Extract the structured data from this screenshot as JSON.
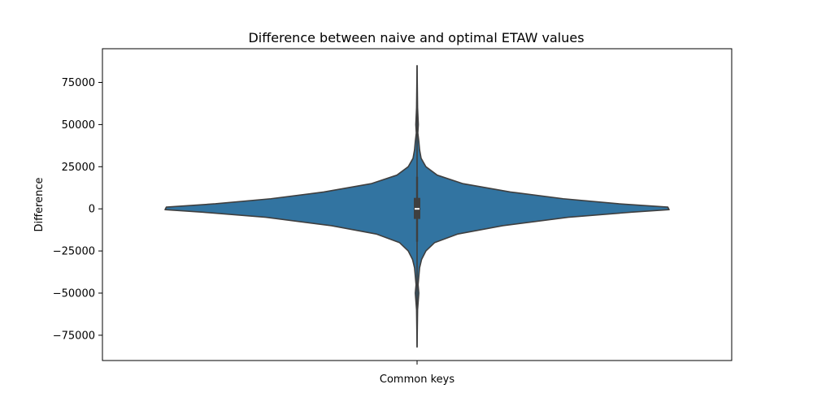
{
  "chart_data": {
    "type": "violin",
    "title": "Difference between naive and optimal ETAW values",
    "xlabel": "Common keys",
    "ylabel": "Difference",
    "categories": [
      ""
    ],
    "ylim": [
      -90000,
      95000
    ],
    "yticks": [
      -75000,
      -50000,
      -25000,
      0,
      25000,
      50000,
      75000
    ],
    "ytick_labels": [
      "−75000",
      "−50000",
      "−25000",
      "0",
      "25000",
      "50000",
      "75000"
    ],
    "grid": false,
    "violin": {
      "y_max": 85000,
      "y_min": -82000,
      "median": 0,
      "q1": -6000,
      "q3": 6500,
      "whisker_low": -19500,
      "whisker_high": 19000,
      "density_profile": [
        {
          "y": 85000,
          "w": 0.0
        },
        {
          "y": 60000,
          "w": 0.002
        },
        {
          "y": 50000,
          "w": 0.005
        },
        {
          "y": 45000,
          "w": 0.003
        },
        {
          "y": 40000,
          "w": 0.007
        },
        {
          "y": 35000,
          "w": 0.01
        },
        {
          "y": 30000,
          "w": 0.016
        },
        {
          "y": 25000,
          "w": 0.035
        },
        {
          "y": 20000,
          "w": 0.08
        },
        {
          "y": 15000,
          "w": 0.18
        },
        {
          "y": 10000,
          "w": 0.37
        },
        {
          "y": 6000,
          "w": 0.58
        },
        {
          "y": 3000,
          "w": 0.8
        },
        {
          "y": 1000,
          "w": 0.995
        },
        {
          "y": -500,
          "w": 1.0
        },
        {
          "y": -2000,
          "w": 0.85
        },
        {
          "y": -5000,
          "w": 0.6
        },
        {
          "y": -10000,
          "w": 0.34
        },
        {
          "y": -15000,
          "w": 0.16
        },
        {
          "y": -20000,
          "w": 0.07
        },
        {
          "y": -25000,
          "w": 0.035
        },
        {
          "y": -30000,
          "w": 0.018
        },
        {
          "y": -35000,
          "w": 0.01
        },
        {
          "y": -40000,
          "w": 0.007
        },
        {
          "y": -45000,
          "w": 0.004
        },
        {
          "y": -50000,
          "w": 0.007
        },
        {
          "y": -60000,
          "w": 0.002
        },
        {
          "y": -82000,
          "w": 0.0
        }
      ]
    },
    "colors": {
      "fill": "#3274a1",
      "outline": "#3f3f3f",
      "box": "#3f3f3f",
      "median": "#ffffff"
    }
  }
}
